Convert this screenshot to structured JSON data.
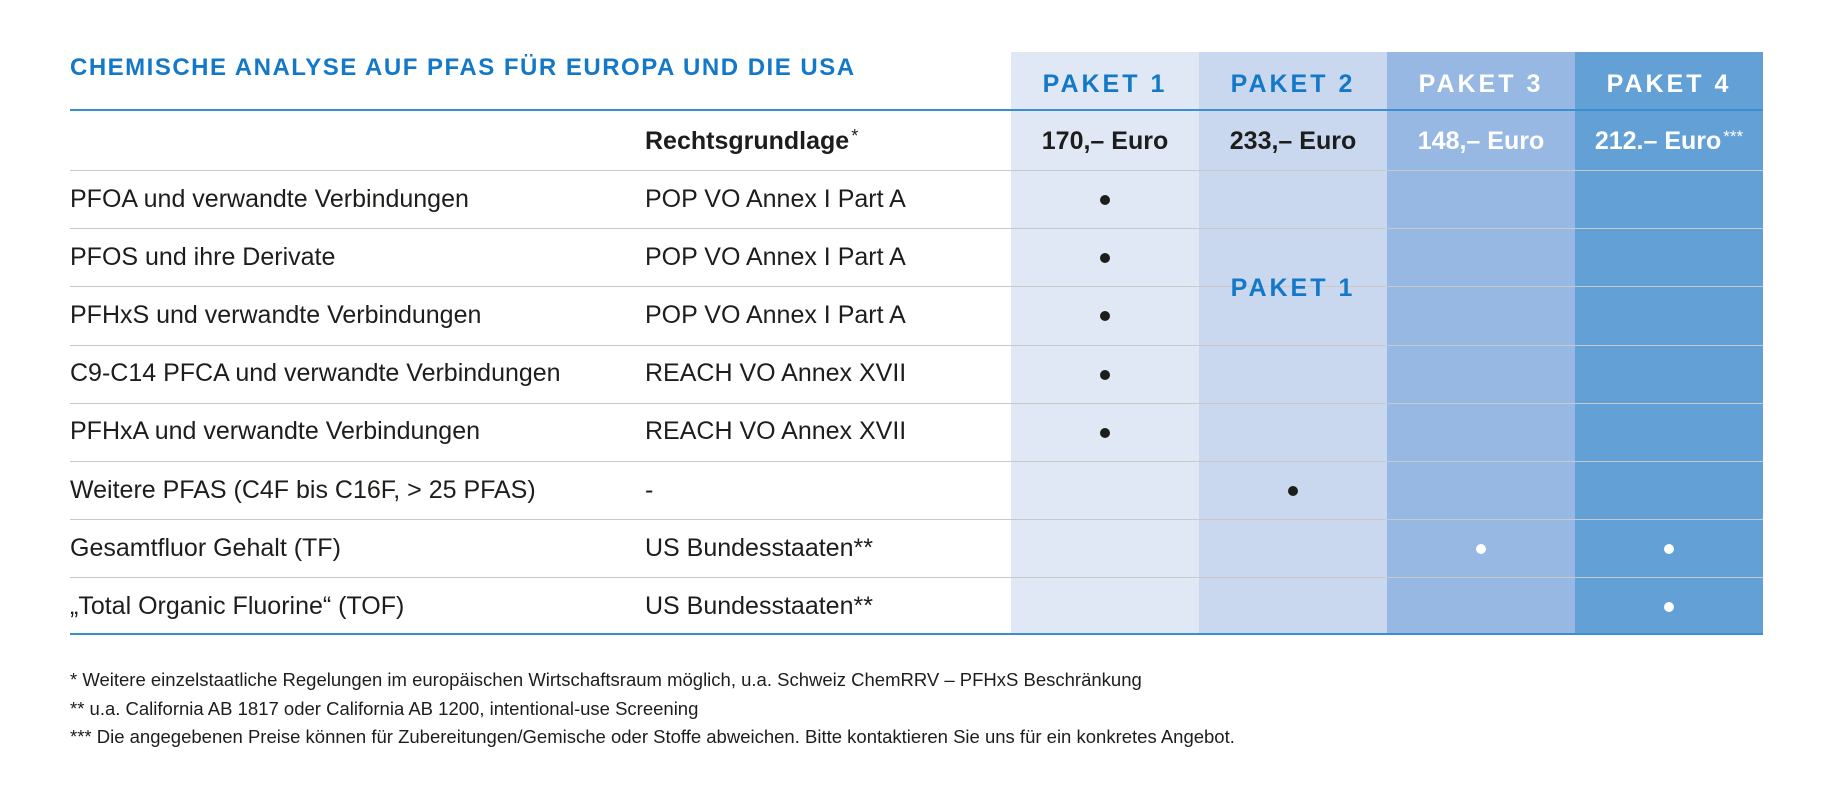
{
  "title": "CHEMISCHE ANALYSE AUF PFAS FÜR EUROPA UND DIE USA",
  "header": {
    "legal_basis_label": "Rechtsgrundlage",
    "legal_basis_mark": "*",
    "packages": [
      {
        "label": "PAKET 1",
        "price": "170,– Euro",
        "price_mark": ""
      },
      {
        "label": "PAKET 2",
        "price": "233,– Euro",
        "price_mark": ""
      },
      {
        "label": "PAKET 3",
        "price": "148,– Euro",
        "price_mark": ""
      },
      {
        "label": "PAKET 4",
        "price": "212.– Euro",
        "price_mark": "***"
      }
    ]
  },
  "colors": {
    "accent": "#1478c8",
    "paket1_bg": "#e1e8f5",
    "paket2_bg": "#c9d8ef",
    "paket3_bg": "#96b8e2",
    "paket4_bg": "#63a0d6"
  },
  "merged_cell_label": "PAKET 1",
  "rows": [
    {
      "name": "PFOA und verwandte Verbindungen",
      "law": "POP VO Annex I Part A",
      "paket1": true,
      "paket2": false,
      "paket3": false,
      "paket4": false
    },
    {
      "name": "PFOS und ihre Derivate",
      "law": "POP VO Annex I Part A",
      "paket1": true,
      "paket2": false,
      "paket3": false,
      "paket4": false
    },
    {
      "name": "PFHxS und verwandte Verbindungen",
      "law": "POP VO Annex I Part A",
      "paket1": true,
      "paket2": false,
      "paket3": false,
      "paket4": false
    },
    {
      "name": "C9-C14 PFCA und verwandte Verbindungen",
      "law": "REACH VO Annex XVII",
      "paket1": true,
      "paket2": false,
      "paket3": false,
      "paket4": false
    },
    {
      "name": "PFHxA und verwandte Verbindungen",
      "law": "REACH VO Annex XVII",
      "paket1": true,
      "paket2": false,
      "paket3": false,
      "paket4": false
    },
    {
      "name": "Weitere PFAS (C4F bis C16F, > 25 PFAS)",
      "law": "-",
      "paket1": false,
      "paket2": true,
      "paket3": false,
      "paket4": false
    },
    {
      "name": "Gesamtfluor Gehalt (TF)",
      "law": "US Bundesstaaten**",
      "paket1": false,
      "paket2": false,
      "paket3": true,
      "paket4": true
    },
    {
      "name": "„Total Organic Fluorine“ (TOF)",
      "law": "US Bundesstaaten**",
      "paket1": false,
      "paket2": false,
      "paket3": false,
      "paket4": true
    }
  ],
  "footnotes": [
    "* Weitere einzelstaatliche Regelungen im europäischen Wirtschaftsraum möglich, u.a. Schweiz ChemRRV – PFHxS Beschränkung",
    "** u.a. California AB 1817 oder California AB 1200, intentional-use Screening",
    "*** Die angegebenen Preise können für Zubereitungen/Gemische oder Stoffe abweichen. Bitte kontaktieren Sie uns für ein konkretes Angebot."
  ]
}
